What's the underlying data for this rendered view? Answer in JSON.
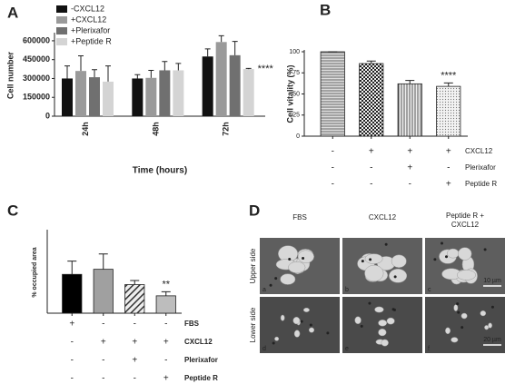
{
  "chart_data": [
    {
      "type": "grouped-bar",
      "letter": "A",
      "y_label": "Cell number",
      "x_label": "Time (hours)",
      "categories": [
        "24h",
        "48h",
        "72h"
      ],
      "series": [
        {
          "name": "-CXCL12",
          "color": "#111111",
          "values": [
            300000,
            300000,
            475000
          ],
          "errors": [
            100000,
            30000,
            60000
          ]
        },
        {
          "name": "+CXCL12",
          "color": "#9a9a9a",
          "values": [
            360000,
            305000,
            590000
          ],
          "errors": [
            120000,
            60000,
            50000
          ]
        },
        {
          "name": "+Plerixafor",
          "color": "#707070",
          "values": [
            310000,
            365000,
            485000
          ],
          "errors": [
            60000,
            70000,
            110000
          ]
        },
        {
          "name": "+Peptide R",
          "color": "#d4d4d4",
          "values": [
            275000,
            365000,
            375000
          ],
          "errors": [
            125000,
            55000,
            5000
          ]
        }
      ],
      "ylim": [
        0,
        650000
      ],
      "yticks": [
        0,
        150000,
        300000,
        450000,
        600000
      ],
      "annotation": "****"
    },
    {
      "type": "bar",
      "letter": "B",
      "y_label": "Cell vitality (%)",
      "values": [
        100,
        86,
        62,
        59
      ],
      "errors": [
        0,
        3,
        4,
        4
      ],
      "colors": [
        "#888888",
        "#444444",
        "#777777",
        "#999999"
      ],
      "patterns": [
        "hlines",
        "checker",
        "vlines",
        "dots"
      ],
      "ylim": [
        0,
        100
      ],
      "yticks": [
        0,
        25,
        50,
        75,
        100
      ],
      "annotation": "****",
      "conditions": [
        {
          "name": "CXCL12",
          "signs": [
            "-",
            "+",
            "+",
            "+"
          ]
        },
        {
          "name": "Plerixafor",
          "signs": [
            "-",
            "-",
            "+",
            "-"
          ]
        },
        {
          "name": "Peptide R",
          "signs": [
            "-",
            "-",
            "-",
            "+"
          ]
        }
      ]
    },
    {
      "type": "bar",
      "letter": "C",
      "y_label": "% occupied area",
      "values": [
        38,
        43,
        28,
        17
      ],
      "errors": [
        13,
        15,
        4,
        4
      ],
      "colors": [
        "#000000",
        "#a0a0a0",
        "#333333",
        "#bdbdbd"
      ],
      "patterns": [
        null,
        null,
        "diag",
        null
      ],
      "ylim": [
        0,
        80
      ],
      "annotation": "**",
      "conditions": [
        {
          "name": "FBS",
          "signs": [
            "+",
            "-",
            "-",
            "-"
          ]
        },
        {
          "name": "CXCL12",
          "signs": [
            "-",
            "+",
            "+",
            "+"
          ]
        },
        {
          "name": "Plerixafor",
          "signs": [
            "-",
            "-",
            "+",
            "-"
          ]
        },
        {
          "name": "Peptide R",
          "signs": [
            "-",
            "-",
            "-",
            "+"
          ]
        }
      ]
    }
  ],
  "panel_d": {
    "letter": "D",
    "columns": [
      [
        "FBS"
      ],
      [
        "CXCL12"
      ],
      [
        "Peptide R +",
        "CXCL12"
      ]
    ],
    "rows": [
      "Upper side",
      "Lower side"
    ],
    "tiles": [
      [
        "a",
        "b",
        "c"
      ],
      [
        "d",
        "e",
        "f"
      ]
    ],
    "scale_bars": [
      "10 µm",
      "20 µm"
    ]
  }
}
